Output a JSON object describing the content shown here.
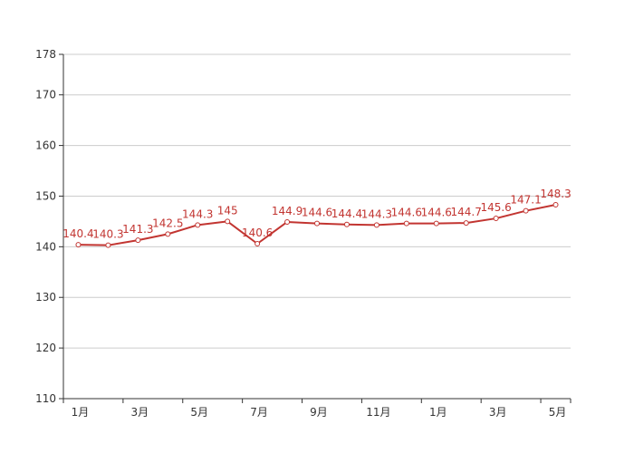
{
  "chart_data": {
    "type": "line",
    "title": "",
    "xlabel": "",
    "ylabel": "",
    "x_tick_labels": [
      "1月",
      "3月",
      "5月",
      "7月",
      "9月",
      "11月",
      "1月",
      "3月",
      "5月"
    ],
    "y_ticks": [
      110,
      120,
      130,
      140,
      150,
      160,
      170,
      178
    ],
    "ylim": [
      110,
      178
    ],
    "grid": "horizontal",
    "legend": "none",
    "series": [
      {
        "color": "#c23531",
        "values": [
          140.4,
          140.3,
          141.3,
          142.5,
          144.3,
          145,
          140.6,
          144.9,
          144.6,
          144.4,
          144.3,
          144.6,
          144.6,
          144.7,
          145.6,
          147.1,
          148.3
        ],
        "labels": [
          "140.4",
          "140.3",
          "141.3",
          "142.5",
          "144.3",
          "145",
          "140.6",
          "144.9",
          "144.6",
          "144.4",
          "144.3",
          "144.6",
          "144.6",
          "144.7",
          "145.6",
          "147.1",
          "148.3"
        ]
      }
    ]
  }
}
